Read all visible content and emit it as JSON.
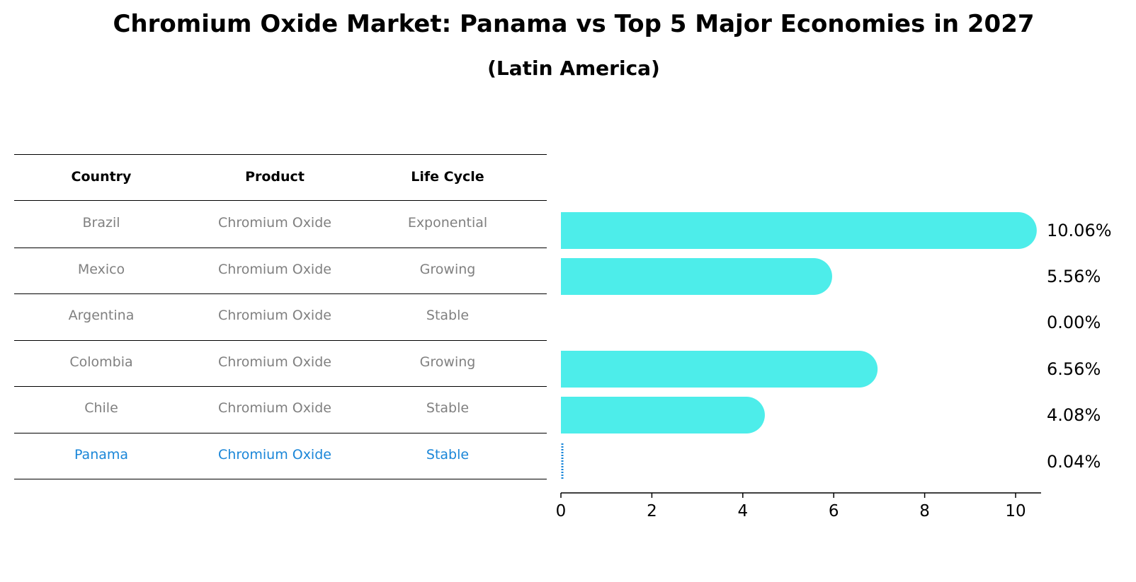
{
  "colors": {
    "bar": "#4DEDEA",
    "highlight": "#1A86D8",
    "text": "#000000",
    "muted": "#808080"
  },
  "chart_data": {
    "type": "bar",
    "title": "Chromium Oxide Market: Panama vs Top 5 Major Economies in 2027",
    "subtitle": "(Latin America)",
    "orientation": "horizontal",
    "categories": [
      "Brazil",
      "Mexico",
      "Argentina",
      "Colombia",
      "Chile",
      "Panama"
    ],
    "values": [
      10.06,
      5.56,
      0.0,
      6.56,
      4.08,
      0.04
    ],
    "value_labels": [
      "10.06%",
      "5.56%",
      "0.00%",
      "6.56%",
      "4.08%",
      "0.04%"
    ],
    "xlim": [
      0,
      10.56
    ],
    "xticks": [
      0,
      2,
      4,
      6,
      8,
      10
    ],
    "xlabel": "",
    "ylabel": "",
    "highlight_category": "Panama",
    "table": {
      "headers": [
        "Country",
        "Product",
        "Life Cycle"
      ],
      "rows": [
        [
          "Brazil",
          "Chromium Oxide",
          "Exponential"
        ],
        [
          "Mexico",
          "Chromium Oxide",
          "Growing"
        ],
        [
          "Argentina",
          "Chromium Oxide",
          "Stable"
        ],
        [
          "Colombia",
          "Chromium Oxide",
          "Growing"
        ],
        [
          "Chile",
          "Chromium Oxide",
          "Stable"
        ],
        [
          "Panama",
          "Chromium Oxide",
          "Stable"
        ]
      ]
    }
  }
}
